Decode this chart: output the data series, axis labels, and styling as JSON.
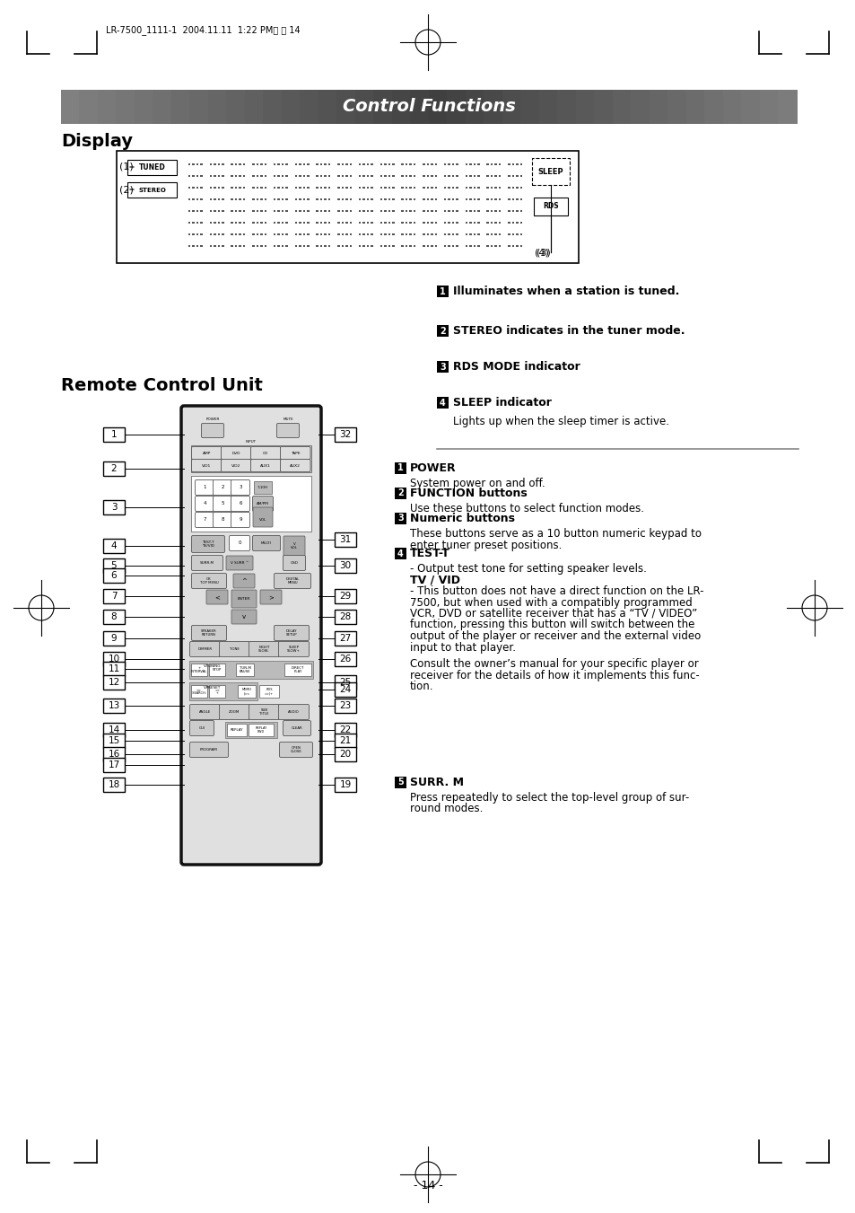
{
  "page_bg": "#ffffff",
  "title_bar_text": "Control Functions",
  "section1_title": "Display",
  "section2_title": "Remote Control Unit",
  "right_annotations_display": [
    {
      "num": "1",
      "bold_text": "Illuminates when a station is tuned.",
      "normal_text": ""
    },
    {
      "num": "2",
      "bold_text": "STEREO indicates in the tuner mode.",
      "normal_text": ""
    },
    {
      "num": "3",
      "bold_text": "RDS MODE indicator",
      "normal_text": ""
    },
    {
      "num": "4",
      "bold_text": "SLEEP indicator",
      "normal_text": "Lights up when the sleep timer is active."
    }
  ],
  "page_number": "- 14 -",
  "remote_left_numbers": [
    "1",
    "2",
    "3",
    "4",
    "5",
    "6",
    "7",
    "8",
    "9",
    "10",
    "11",
    "12",
    "13",
    "14",
    "15",
    "16",
    "17",
    "18"
  ],
  "remote_right_numbers": [
    "32",
    "31",
    "30",
    "29",
    "28",
    "27",
    "26",
    "25",
    "24",
    "23",
    "22",
    "21",
    "20",
    "19"
  ],
  "remote_left_y": [
    476,
    514,
    557,
    600,
    622,
    633,
    656,
    679,
    703,
    726,
    737,
    752,
    778,
    805,
    817,
    832,
    844,
    866
  ],
  "remote_right_y": [
    476,
    593,
    622,
    656,
    679,
    703,
    726,
    752,
    760,
    778,
    805,
    817,
    832,
    866
  ]
}
